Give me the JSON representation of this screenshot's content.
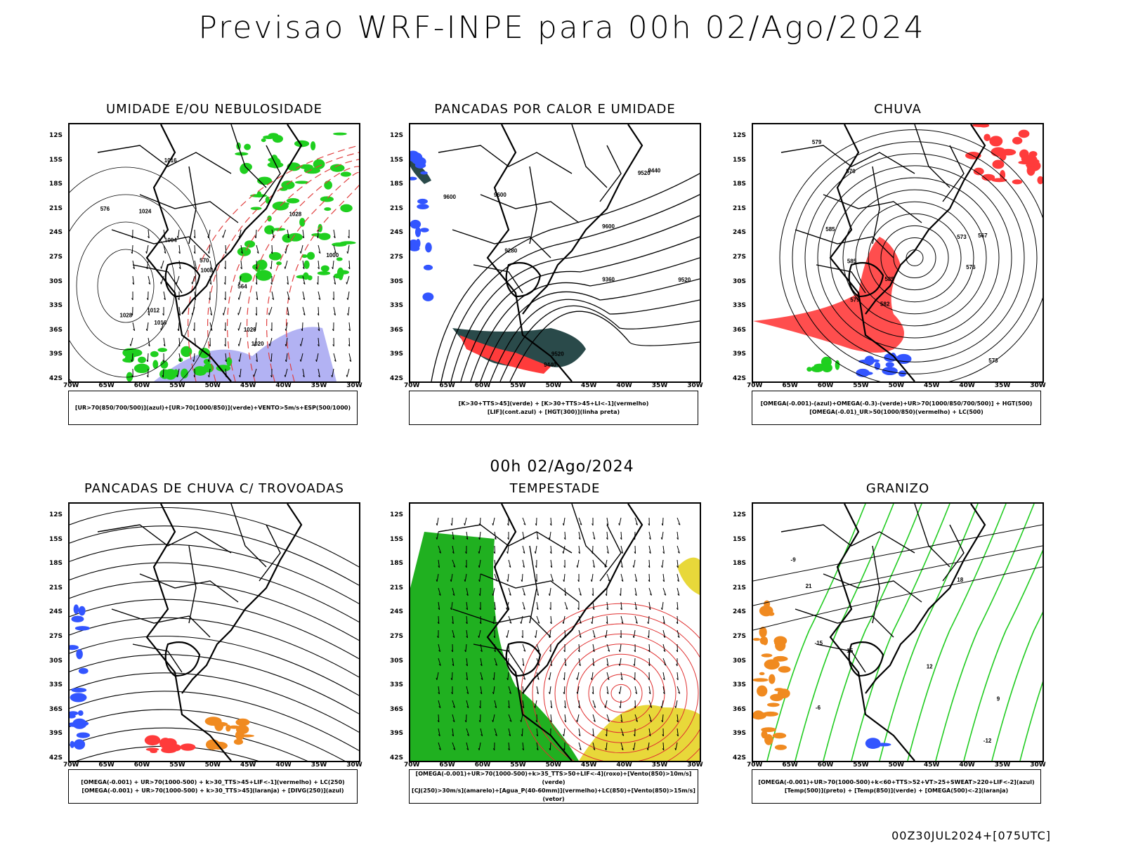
{
  "title": "Previsao WRF-INPE  para 00h 02/Ago/2024",
  "mid_date": "00h 02/Ago/2024",
  "footer": "00Z30JUL2024+[075UTC]",
  "lat_labels": [
    "12S",
    "15S",
    "18S",
    "21S",
    "24S",
    "27S",
    "30S",
    "33S",
    "36S",
    "39S",
    "42S"
  ],
  "lon_labels": [
    "70W",
    "65W",
    "60W",
    "55W",
    "50W",
    "45W",
    "40W",
    "35W",
    "30W"
  ],
  "panels": [
    {
      "title": "UMIDADE E/OU NEBULOSIDADE",
      "legend": [
        "[UR>70(850/700/500)](azul)+[UR>70(1000/850)](verde)+VENTO>5m/s+ESP(500/1000)"
      ],
      "labels": [
        "1020",
        "1016",
        "1012",
        "1024",
        "1028",
        "1020",
        "1000",
        "1004",
        "1008",
        "1016",
        "1028",
        "576",
        "570",
        "564"
      ]
    },
    {
      "title": "PANCADAS POR CALOR E UMIDADE",
      "legend": [
        "[K>30+TTS>45](verde) + [K>30+TTS>45+LI<-1](vermelho)",
        "[LIF](cont.azul) + [HGT(300)](linha preta)"
      ],
      "labels": [
        "9600",
        "9600",
        "9600",
        "9520",
        "9520",
        "9440",
        "9360",
        "9280",
        "9440",
        "9520"
      ]
    },
    {
      "title": "CHUVA",
      "legend": [
        "[OMEGA(-0.001)-(azul)+OMEGA(-0.3)-(verde)+UR>70(1000/850/700/500)] + HGT(500)",
        "[OMEGA(-0.01)_UR>50(1000/850)(vermelho) + LC(500)"
      ],
      "labels": [
        "585",
        "585",
        "579",
        "576",
        "573",
        "570",
        "582",
        "585",
        "579",
        "573",
        "567"
      ]
    },
    {
      "title": "PANCADAS DE CHUVA C/ TROVOADAS",
      "legend": [
        "[OMEGA(-0.001) + UR>70(1000-500) + k>30_TTS>45+LIF<-1](vermelho) + LC(250)",
        "[OMEGA(-0.001) + UR>70(1000-500) + k>30_TTS>45](laranja) + [DIVG(250)](azul)"
      ],
      "labels": []
    },
    {
      "title": "TEMPESTADE",
      "legend": [
        "[OMEGA(-0.001)+UR>70(1000-500)+k>35_TTS>50+LIF<-4](roxo)+[Vento(850)>10m/s](verde)",
        "[CJ(250)>30m/s](amarelo)+[Agua_P(40-60mm)](vermelho)+LC(850)+[Vento(850)>15m/s](vetor)"
      ],
      "labels": []
    },
    {
      "title": "GRANIZO",
      "legend": [
        "[OMEGA(-0.001)+UR>70(1000-500)+k<60+TTS>52+VT>25+SWEAT>220+LIF<-2](azul)",
        "[Temp(500)](preto) + [Temp(850)](verde) + [OMEGA(500)<-2](laranja)"
      ],
      "labels": [
        "-12",
        "-15",
        "12",
        "-9",
        "9",
        "21",
        "-6",
        "15",
        "18"
      ]
    }
  ],
  "colors": {
    "red": "#ff3b3b",
    "green": "#1fcf1f",
    "blue": "#3355ff",
    "lightblue": "#9f9ff0",
    "teal": "#2a4a4a",
    "yellow": "#e8d83a",
    "orange": "#f08a20"
  }
}
